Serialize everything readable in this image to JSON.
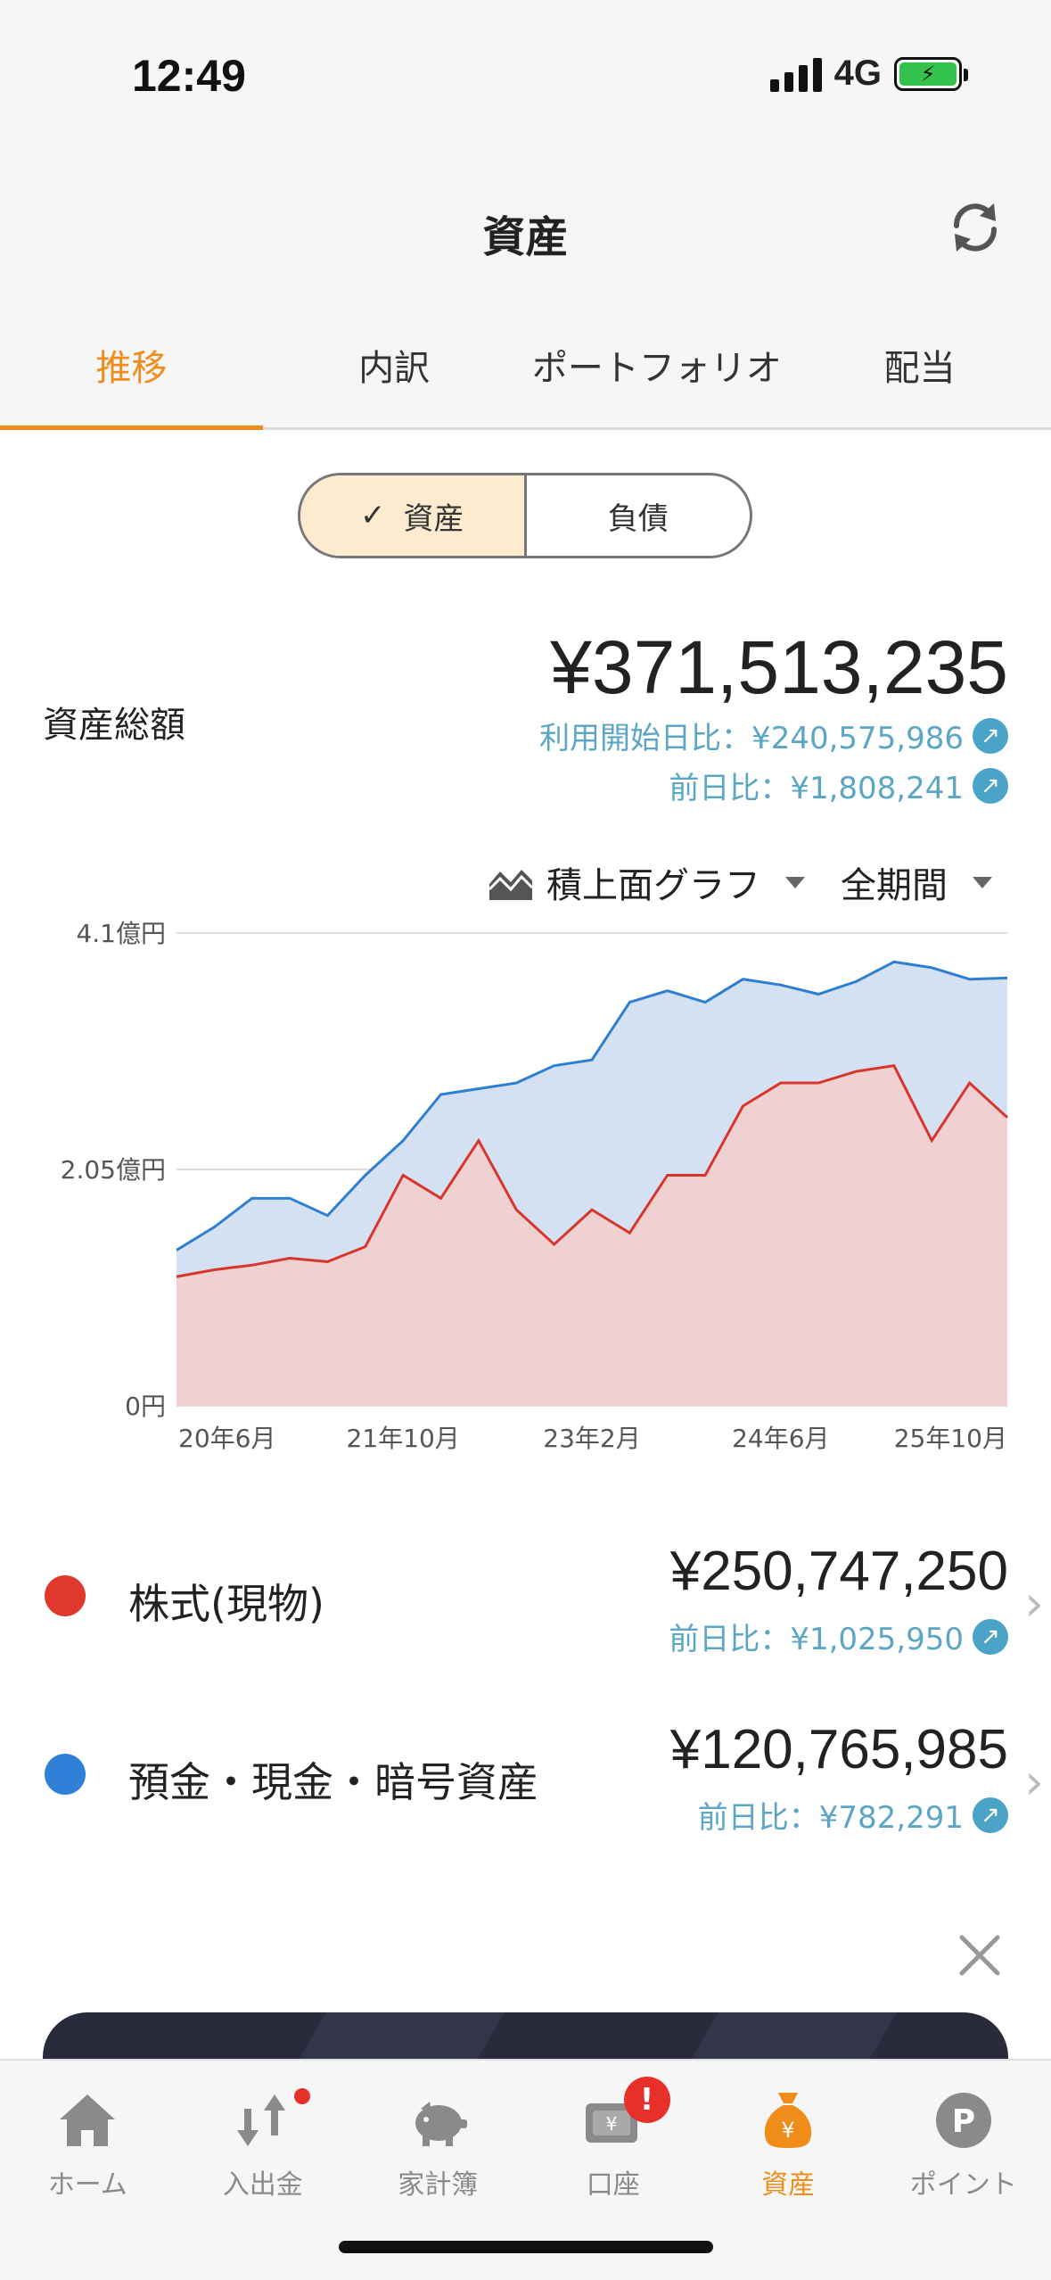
{
  "status_bar": {
    "time": "12:49",
    "network": "4G"
  },
  "nav": {
    "title": "資産"
  },
  "tabs": [
    {
      "label": "推移",
      "active": true
    },
    {
      "label": "内訳",
      "active": false
    },
    {
      "label": "ポートフォリオ",
      "active": false
    },
    {
      "label": "配当",
      "active": false
    }
  ],
  "segment": {
    "assets_label": "資産",
    "liabilities_label": "負債",
    "selected": "資産"
  },
  "summary": {
    "label": "資産総額",
    "total": "¥371,513,235",
    "since_start": "利用開始日比：¥240,575,986",
    "day_change": "前日比：¥1,808,241"
  },
  "chart_controls": {
    "chart_type": "積上面グラフ",
    "period": "全期間"
  },
  "chart_data": {
    "type": "area",
    "stacked": true,
    "y_tick_labels": [
      "4.1億円",
      "2.05億円",
      "0円"
    ],
    "y_ticks": [
      410000000,
      205000000,
      0
    ],
    "ylim": [
      0,
      410000000
    ],
    "x_tick_labels": [
      "20年6月",
      "21年10月",
      "23年2月",
      "24年6月",
      "25年10月"
    ],
    "x": [
      "2020-03",
      "2020-06",
      "2020-09",
      "2020-12",
      "2021-03",
      "2021-06",
      "2021-10",
      "2022-01",
      "2022-04",
      "2022-07",
      "2022-10",
      "2023-02",
      "2023-05",
      "2023-08",
      "2023-11",
      "2024-02",
      "2024-06",
      "2024-09",
      "2024-12",
      "2025-03",
      "2025-06",
      "2025-10",
      "2025-12"
    ],
    "series": [
      {
        "name": "株式(現物)",
        "color": "#d8362c",
        "values": [
          112000000,
          118000000,
          122000000,
          128000000,
          125000000,
          138000000,
          200000000,
          180000000,
          230000000,
          170000000,
          140000000,
          170000000,
          150000000,
          200000000,
          200000000,
          260000000,
          280000000,
          280000000,
          290000000,
          295000000,
          230000000,
          280000000,
          250000000
        ]
      },
      {
        "name": "預金・現金・暗号資産",
        "color": "#2f7fd0",
        "values": [
          23000000,
          37000000,
          58000000,
          52000000,
          40000000,
          62000000,
          30000000,
          90000000,
          45000000,
          110000000,
          155000000,
          130000000,
          200000000,
          160000000,
          150000000,
          110000000,
          85000000,
          77000000,
          78000000,
          90000000,
          150000000,
          90000000,
          121000000
        ]
      }
    ]
  },
  "assets": [
    {
      "name": "株式(現物)",
      "value": "¥250,747,250",
      "day_change": "前日比：¥1,025,950",
      "color": "#e0382d"
    },
    {
      "name": "預金・現金・暗号資産",
      "value": "¥120,765,985",
      "day_change": "前日比：¥782,291",
      "color": "#2f80d6"
    }
  ],
  "tabbar": [
    {
      "label": "ホーム",
      "icon": "home-icon",
      "active": false
    },
    {
      "label": "入出金",
      "icon": "transfer-icon",
      "active": false
    },
    {
      "label": "家計簿",
      "icon": "piggy-bank-icon",
      "active": false
    },
    {
      "label": "口座",
      "icon": "account-icon",
      "active": false,
      "badge": "!"
    },
    {
      "label": "資産",
      "icon": "money-bag-icon",
      "active": true
    },
    {
      "label": "ポイント",
      "icon": "point-icon",
      "active": false
    }
  ],
  "colors": {
    "accent": "#f08c1a",
    "link": "#5aa6c4",
    "stock": "#d8362c",
    "cash": "#2f7fd0"
  }
}
